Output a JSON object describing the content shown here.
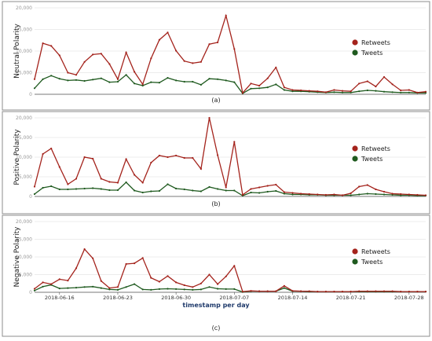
{
  "figure": {
    "xlabel": "timestamp per day",
    "x_tick_labels": [
      "2018-06-16",
      "2018-06-23",
      "2018-06-30",
      "2018-07-07",
      "2018-07-14",
      "2018-07-21",
      "2018-07-28"
    ],
    "colors": {
      "retweets": "#a4231c",
      "tweets": "#1f5a1f",
      "frame": "#8e8e8e",
      "grid": "#d9d9d9",
      "tick_text": "#999999"
    }
  },
  "chart_data": [
    {
      "type": "line",
      "panel_label": "(a)",
      "ylabel": "Neutral Polarity",
      "ylim": [
        0,
        20000
      ],
      "y_ticks": [
        "0",
        "5,000",
        "10,000",
        "15,000",
        "20,000"
      ],
      "x": [
        "2018-06-13",
        "2018-06-14",
        "2018-06-15",
        "2018-06-16",
        "2018-06-17",
        "2018-06-18",
        "2018-06-19",
        "2018-06-20",
        "2018-06-21",
        "2018-06-22",
        "2018-06-23",
        "2018-06-24",
        "2018-06-25",
        "2018-06-26",
        "2018-06-27",
        "2018-06-28",
        "2018-06-29",
        "2018-06-30",
        "2018-07-01",
        "2018-07-02",
        "2018-07-03",
        "2018-07-04",
        "2018-07-05",
        "2018-07-06",
        "2018-07-07",
        "2018-07-08",
        "2018-07-09",
        "2018-07-10",
        "2018-07-11",
        "2018-07-12",
        "2018-07-13",
        "2018-07-14",
        "2018-07-15",
        "2018-07-16",
        "2018-07-17",
        "2018-07-18",
        "2018-07-19",
        "2018-07-20",
        "2018-07-21",
        "2018-07-22",
        "2018-07-23",
        "2018-07-24",
        "2018-07-25",
        "2018-07-26",
        "2018-07-27",
        "2018-07-28",
        "2018-07-29",
        "2018-07-30"
      ],
      "legend": [
        "Retweets",
        "Tweets"
      ],
      "legend_position": "right",
      "series": [
        {
          "name": "Retweets",
          "values": [
            3500,
            11800,
            11200,
            9000,
            5000,
            4500,
            7500,
            9200,
            9400,
            7000,
            3500,
            9700,
            5200,
            2300,
            8300,
            12600,
            14300,
            10100,
            7700,
            7200,
            7500,
            11600,
            12000,
            18200,
            10500,
            300,
            2500,
            2000,
            3700,
            6200,
            1600,
            1000,
            900,
            800,
            700,
            500,
            1000,
            800,
            700,
            2500,
            3000,
            1800,
            4000,
            2300,
            900,
            1000,
            400,
            600
          ]
        },
        {
          "name": "Tweets",
          "values": [
            1400,
            3500,
            4300,
            3600,
            3200,
            3300,
            3100,
            3400,
            3700,
            2800,
            2900,
            4500,
            2500,
            2000,
            2800,
            2700,
            3800,
            3200,
            2900,
            2900,
            2200,
            3600,
            3500,
            3200,
            2800,
            200,
            1300,
            1400,
            1600,
            2300,
            1000,
            700,
            700,
            600,
            500,
            400,
            500,
            400,
            400,
            700,
            900,
            800,
            600,
            500,
            400,
            400,
            300,
            300
          ]
        }
      ]
    },
    {
      "type": "line",
      "panel_label": "(b)",
      "ylabel": "Positive Polarity",
      "ylim": [
        0,
        20000
      ],
      "y_ticks": [
        "0",
        "5,000",
        "10,000",
        "15,000",
        "20,000"
      ],
      "x": [
        "2018-06-13",
        "2018-06-14",
        "2018-06-15",
        "2018-06-16",
        "2018-06-17",
        "2018-06-18",
        "2018-06-19",
        "2018-06-20",
        "2018-06-21",
        "2018-06-22",
        "2018-06-23",
        "2018-06-24",
        "2018-06-25",
        "2018-06-26",
        "2018-06-27",
        "2018-06-28",
        "2018-06-29",
        "2018-06-30",
        "2018-07-01",
        "2018-07-02",
        "2018-07-03",
        "2018-07-04",
        "2018-07-05",
        "2018-07-06",
        "2018-07-07",
        "2018-07-08",
        "2018-07-09",
        "2018-07-10",
        "2018-07-11",
        "2018-07-12",
        "2018-07-13",
        "2018-07-14",
        "2018-07-15",
        "2018-07-16",
        "2018-07-17",
        "2018-07-18",
        "2018-07-19",
        "2018-07-20",
        "2018-07-21",
        "2018-07-22",
        "2018-07-23",
        "2018-07-24",
        "2018-07-25",
        "2018-07-26",
        "2018-07-27",
        "2018-07-28",
        "2018-07-29",
        "2018-07-30"
      ],
      "legend": [
        "Retweets",
        "Tweets"
      ],
      "legend_position": "right",
      "series": [
        {
          "name": "Retweets",
          "values": [
            2500,
            10800,
            12200,
            7500,
            3100,
            4500,
            10000,
            9600,
            4500,
            3700,
            3500,
            9500,
            5500,
            3500,
            8600,
            10400,
            10000,
            10400,
            9800,
            9800,
            7000,
            20000,
            10500,
            2300,
            13900,
            400,
            1900,
            2300,
            2700,
            3000,
            1100,
            900,
            700,
            600,
            500,
            400,
            500,
            300,
            800,
            2500,
            2900,
            1800,
            1200,
            700,
            600,
            500,
            400,
            300
          ]
        },
        {
          "name": "Tweets",
          "values": [
            600,
            2200,
            2600,
            1800,
            1800,
            1900,
            2000,
            2100,
            1900,
            1600,
            1600,
            3600,
            1500,
            1000,
            1300,
            1400,
            3100,
            2000,
            1800,
            1500,
            1300,
            2400,
            1900,
            1500,
            1500,
            200,
            1000,
            900,
            1200,
            1400,
            700,
            500,
            500,
            400,
            400,
            300,
            300,
            300,
            300,
            500,
            700,
            600,
            500,
            400,
            300,
            300,
            200,
            200
          ]
        }
      ]
    },
    {
      "type": "line",
      "panel_label": "(c)",
      "ylabel": "Negative Polarity",
      "ylim": [
        0,
        20000
      ],
      "y_ticks": [
        "0",
        "5,000",
        "10,000",
        "15,000",
        "20,000"
      ],
      "x": [
        "2018-06-13",
        "2018-06-14",
        "2018-06-15",
        "2018-06-16",
        "2018-06-17",
        "2018-06-18",
        "2018-06-19",
        "2018-06-20",
        "2018-06-21",
        "2018-06-22",
        "2018-06-23",
        "2018-06-24",
        "2018-06-25",
        "2018-06-26",
        "2018-06-27",
        "2018-06-28",
        "2018-06-29",
        "2018-06-30",
        "2018-07-01",
        "2018-07-02",
        "2018-07-03",
        "2018-07-04",
        "2018-07-05",
        "2018-07-06",
        "2018-07-07",
        "2018-07-08",
        "2018-07-09",
        "2018-07-10",
        "2018-07-11",
        "2018-07-12",
        "2018-07-13",
        "2018-07-14",
        "2018-07-15",
        "2018-07-16",
        "2018-07-17",
        "2018-07-18",
        "2018-07-19",
        "2018-07-20",
        "2018-07-21",
        "2018-07-22",
        "2018-07-23",
        "2018-07-24",
        "2018-07-25",
        "2018-07-26",
        "2018-07-27",
        "2018-07-28",
        "2018-07-29",
        "2018-07-30"
      ],
      "legend": [
        "Retweets",
        "Tweets"
      ],
      "legend_position": "right",
      "series": [
        {
          "name": "Retweets",
          "values": [
            1000,
            2800,
            2300,
            3700,
            3300,
            6800,
            12200,
            9600,
            3200,
            1200,
            1500,
            8000,
            8200,
            9700,
            4100,
            3000,
            4600,
            2800,
            2000,
            1500,
            2500,
            5000,
            2300,
            4500,
            7500,
            200,
            400,
            300,
            300,
            300,
            1800,
            400,
            300,
            300,
            200,
            200,
            200,
            200,
            200,
            300,
            300,
            300,
            300,
            300,
            200,
            200,
            200,
            200
          ]
        },
        {
          "name": "Tweets",
          "values": [
            500,
            1600,
            2100,
            1100,
            1200,
            1300,
            1500,
            1600,
            1200,
            800,
            700,
            1500,
            2300,
            800,
            700,
            900,
            1000,
            900,
            800,
            700,
            800,
            1500,
            1000,
            900,
            900,
            100,
            300,
            300,
            300,
            300,
            1200,
            300,
            300,
            200,
            200,
            200,
            200,
            200,
            200,
            200,
            200,
            200,
            200,
            200,
            200,
            200,
            200,
            200
          ]
        }
      ]
    }
  ]
}
